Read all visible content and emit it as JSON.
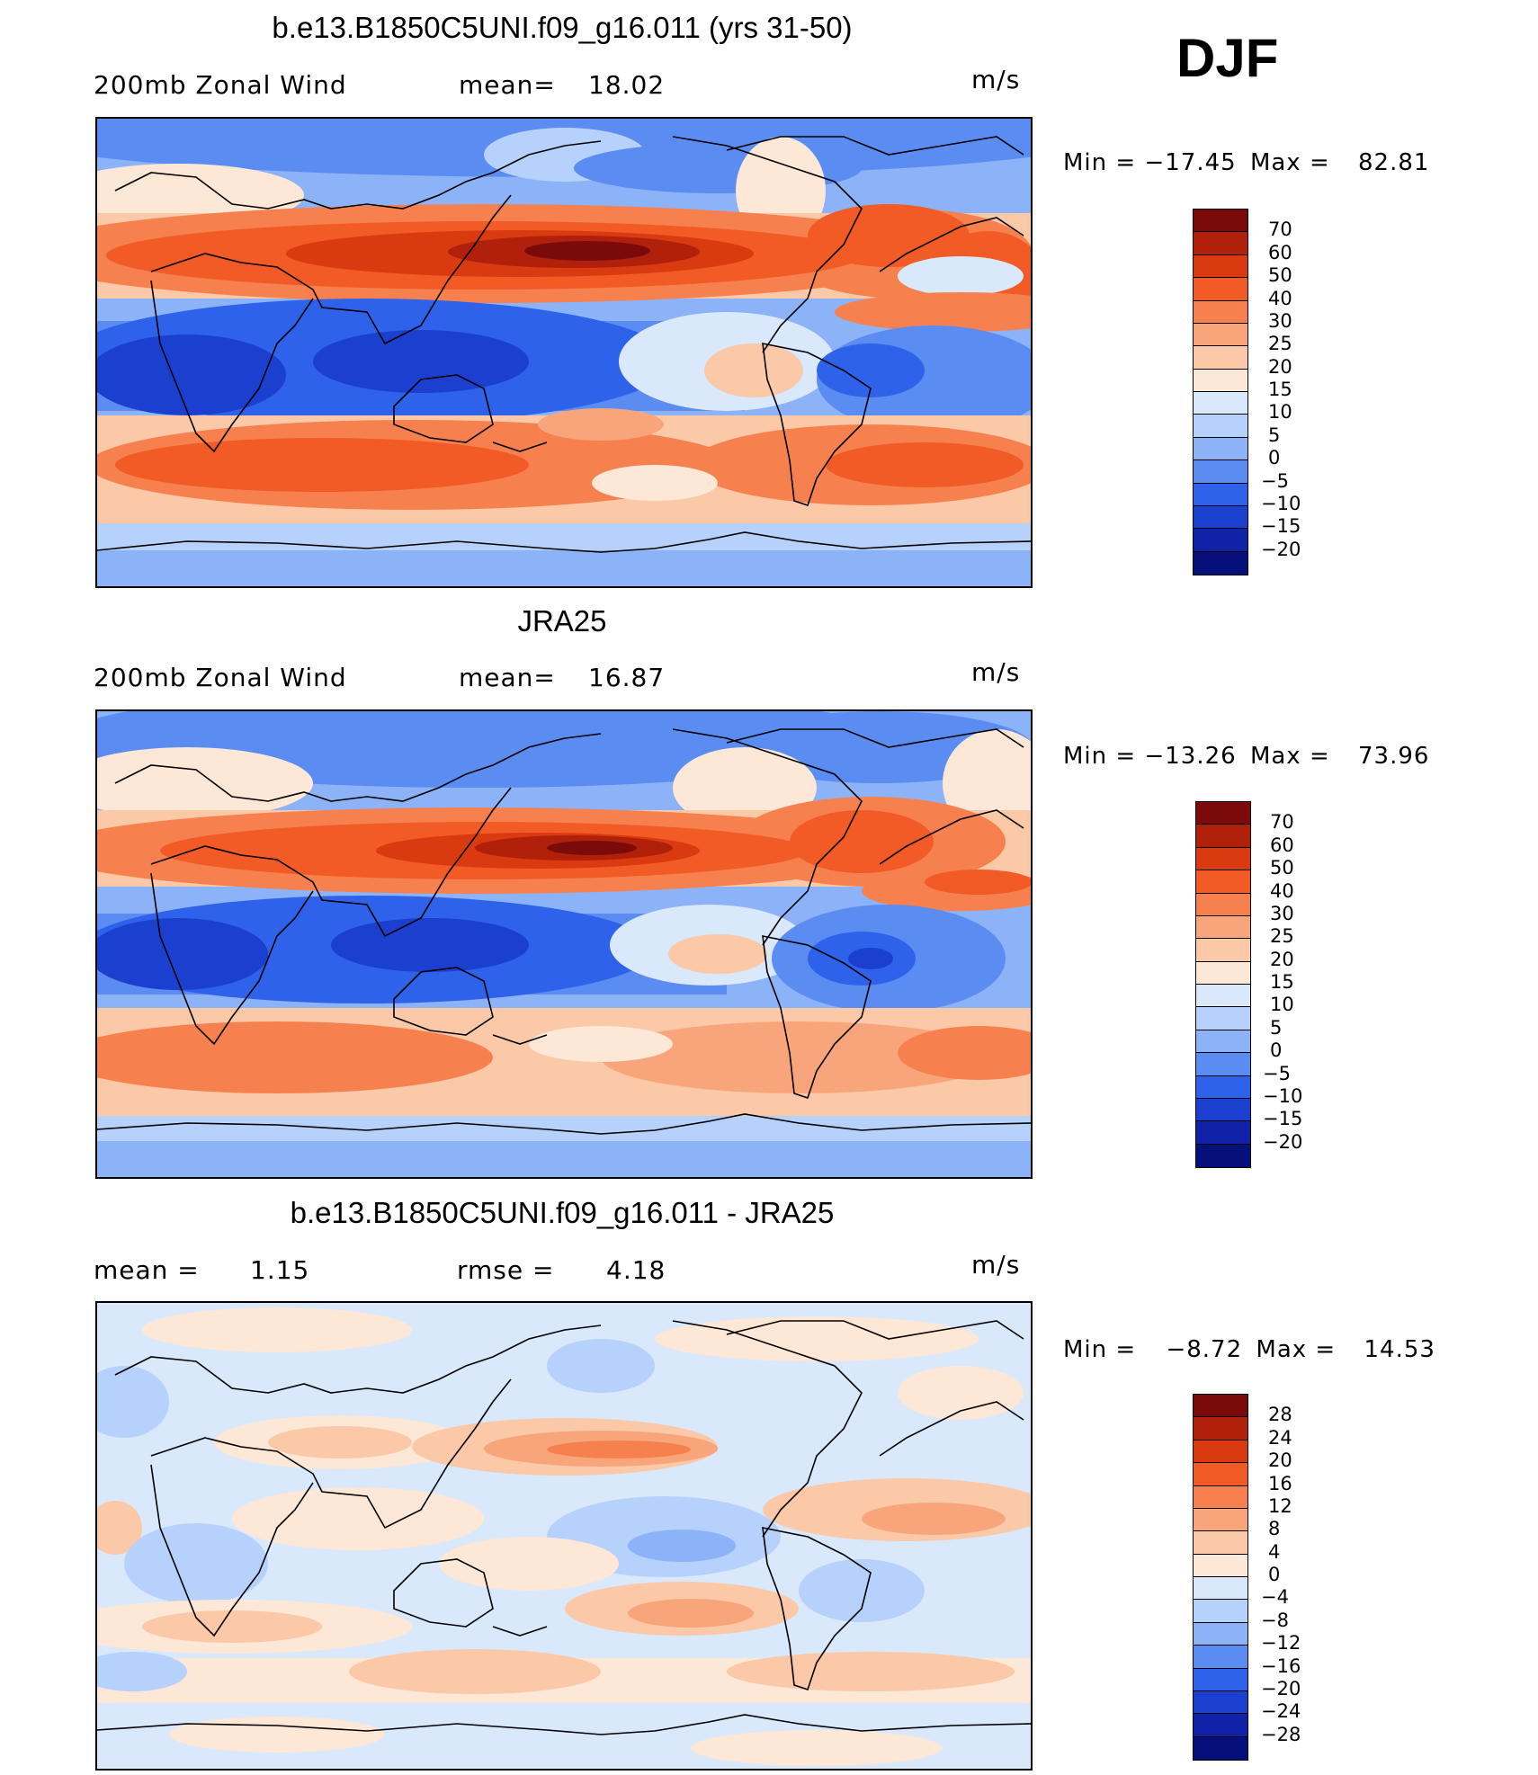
{
  "season": "DJF",
  "panels": [
    {
      "title": "b.e13.B1850C5UNI.f09_g16.011 (yrs 31-50)",
      "left_text": "200mb  Zonal  Wind",
      "center_label": "mean=",
      "center_value": "18.02",
      "units": "m/s",
      "min_label": "Min  =",
      "min_value": "−17.45",
      "max_label": "Max  =",
      "max_value": "82.81",
      "levels": [
        "70",
        "60",
        "50",
        "40",
        "30",
        "25",
        "20",
        "15",
        "10",
        "5",
        "0",
        "−5",
        "−10",
        "−15",
        "−20"
      ]
    },
    {
      "title": "JRA25",
      "left_text": "200mb  Zonal  Wind",
      "center_label": "mean=",
      "center_value": "16.87",
      "units": "m/s",
      "min_label": "Min  =",
      "min_value": "−13.26",
      "max_label": "Max  =",
      "max_value": "73.96",
      "levels": [
        "70",
        "60",
        "50",
        "40",
        "30",
        "25",
        "20",
        "15",
        "10",
        "5",
        "0",
        "−5",
        "−10",
        "−15",
        "−20"
      ]
    },
    {
      "title": "b.e13.B1850C5UNI.f09_g16.011 - JRA25",
      "left_label": "mean  =",
      "left_value": "1.15",
      "center_label": "rmse  =",
      "center_value": "4.18",
      "units": "m/s",
      "min_label": "Min  =",
      "min_value": "−8.72",
      "max_label": "Max  =",
      "max_value": "14.53",
      "levels": [
        "28",
        "24",
        "20",
        "16",
        "12",
        "8",
        "4",
        "0",
        "−4",
        "−8",
        "−12",
        "−16",
        "−20",
        "−24",
        "−28"
      ]
    }
  ],
  "colors": {
    "scale": [
      "#7b0a0a",
      "#b0200a",
      "#d93a10",
      "#f25a26",
      "#f7814e",
      "#f9a57c",
      "#fbc8a8",
      "#fde7d6",
      "#d9e8fb",
      "#b6d1fb",
      "#8cb2f8",
      "#5b8cf2",
      "#2f62ea",
      "#1b3fcf",
      "#0f22a8",
      "#06107a"
    ]
  }
}
